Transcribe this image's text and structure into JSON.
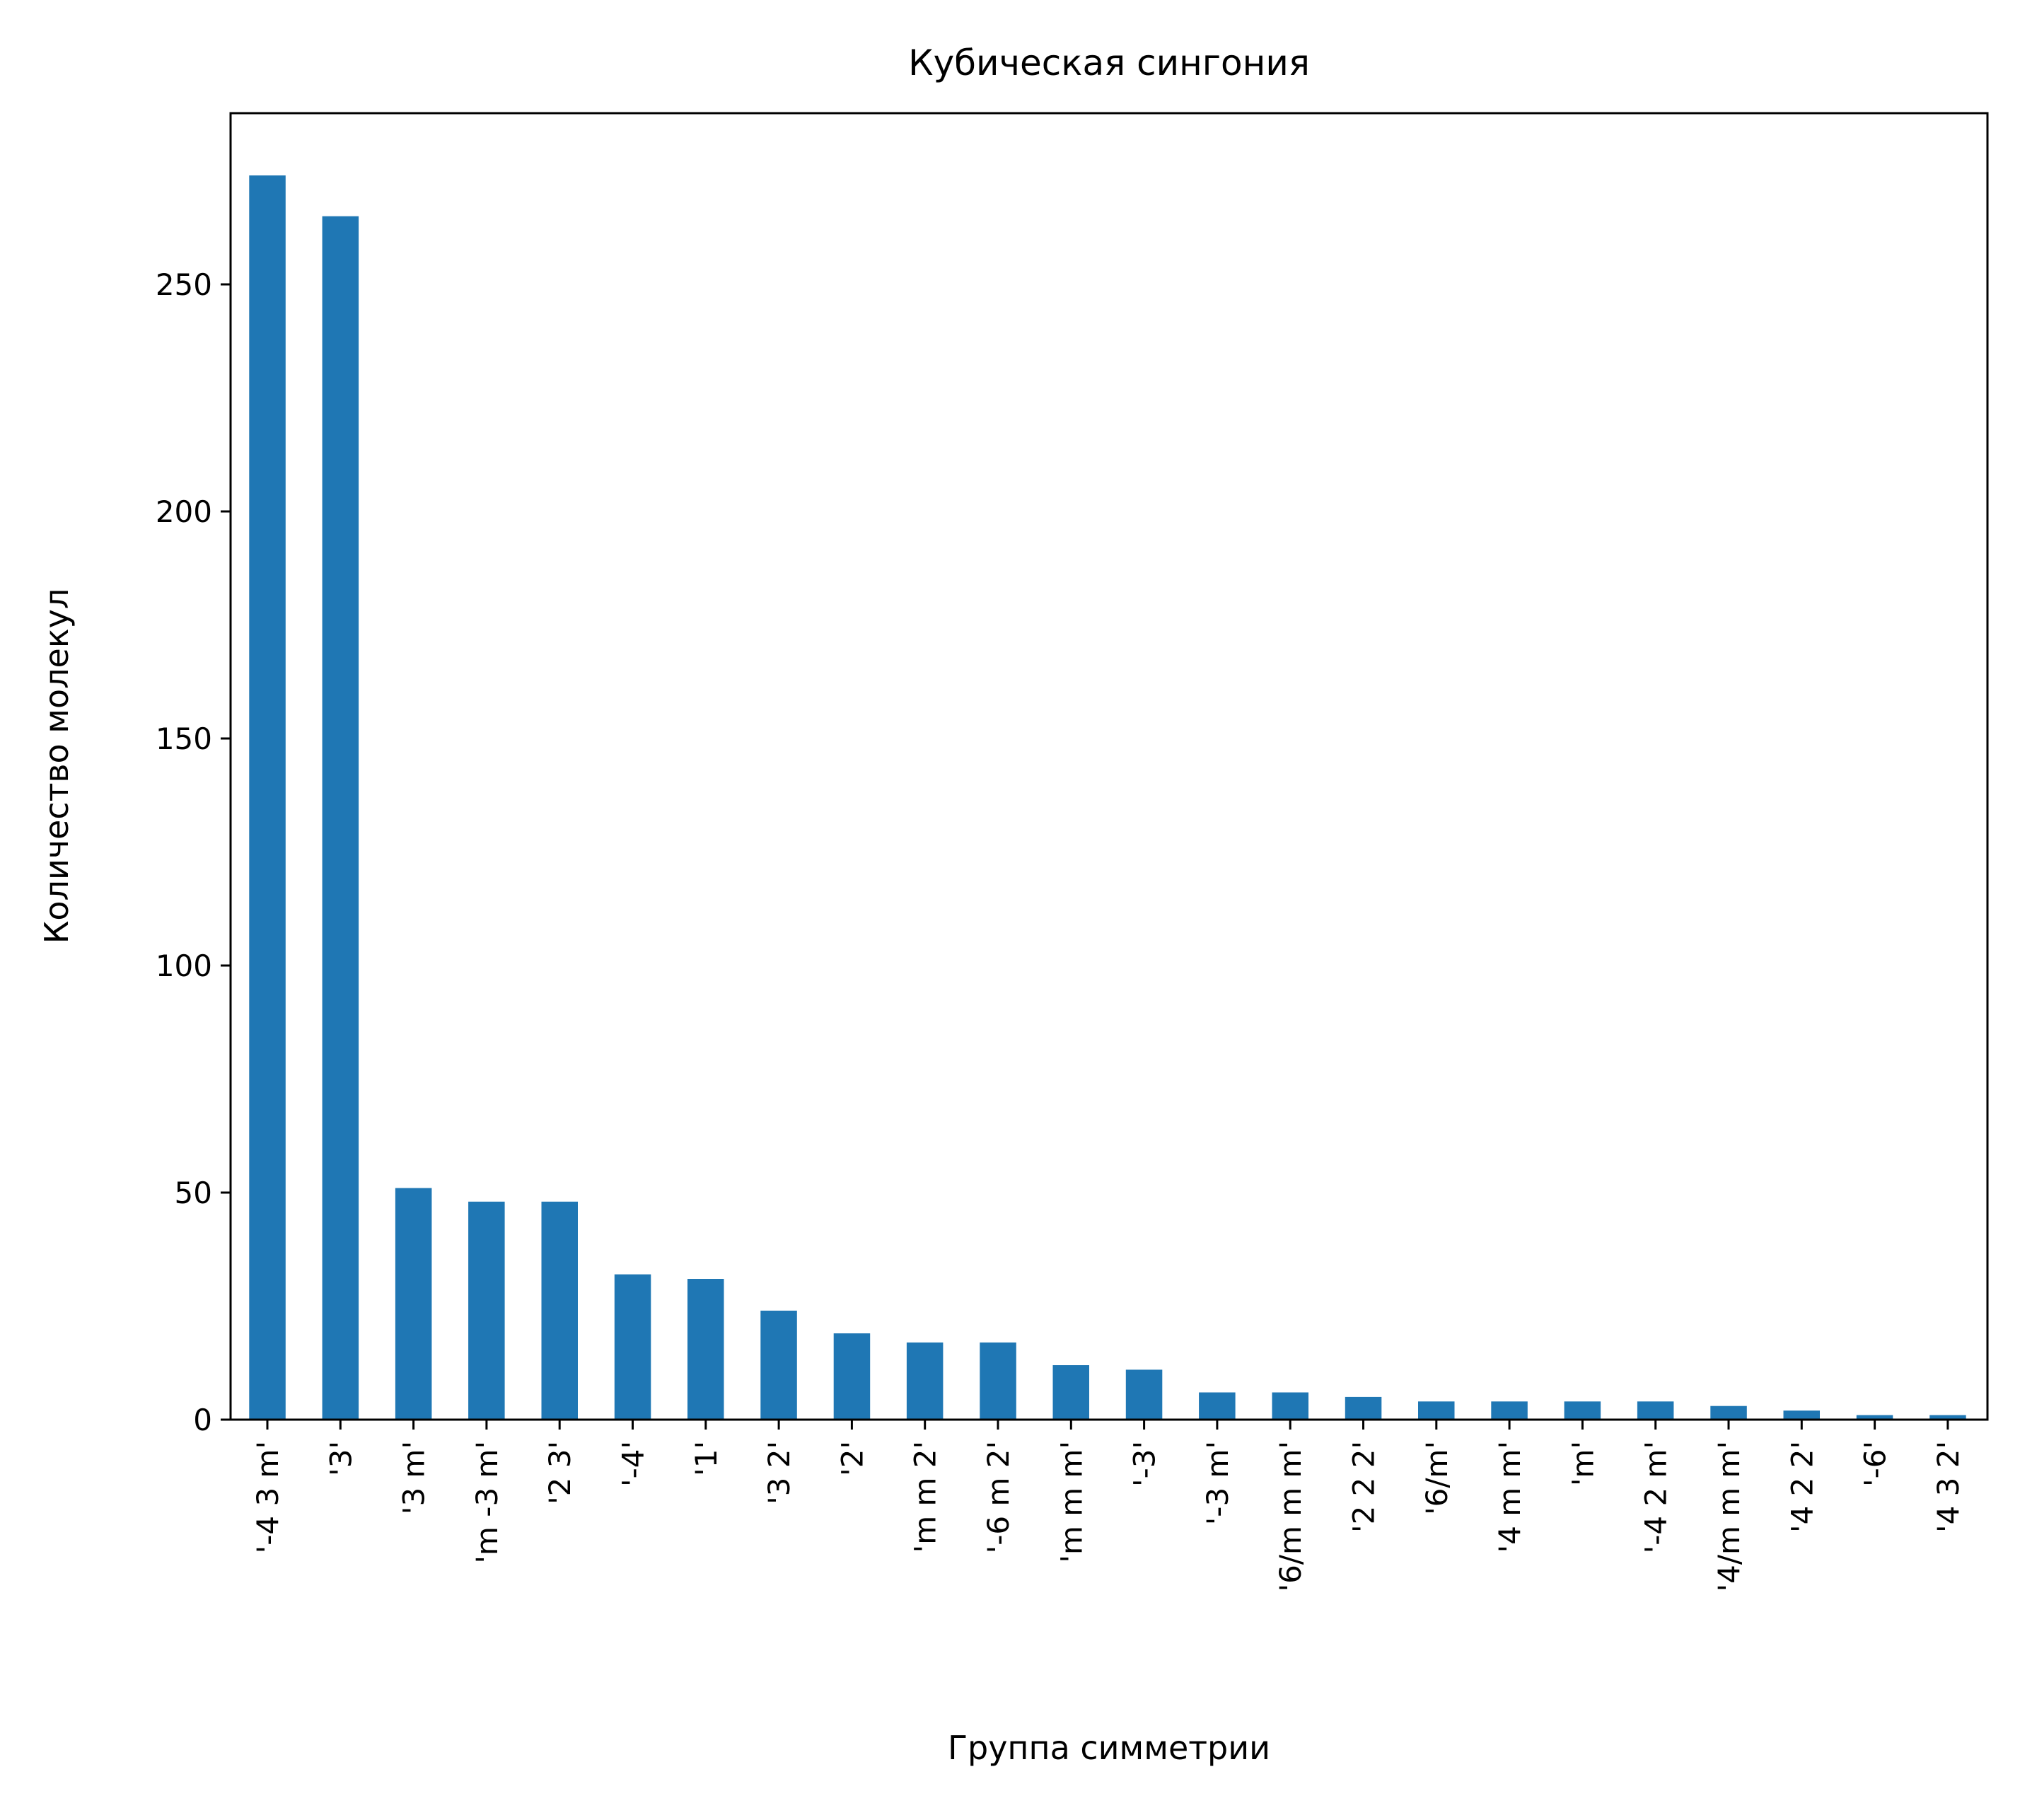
{
  "chart_data": {
    "type": "bar",
    "title": "Кубическая сингония",
    "xlabel": "Группа симметрии",
    "ylabel": "Количество молекул",
    "categories": [
      "'-4 3 m'",
      "'3'",
      "'3 m'",
      "'m -3 m'",
      "'2 3'",
      "'-4'",
      "'1'",
      "'3 2'",
      "'2'",
      "'m m 2'",
      "'-6 m 2'",
      "'m m m'",
      "'-3'",
      "'-3 m'",
      "'6/m m m'",
      "'2 2 2'",
      "'6/m'",
      "'4 m m'",
      "'m'",
      "'-4 2 m'",
      "'4/m m m'",
      "'4 2 2'",
      "'-6'",
      "'4 3 2'"
    ],
    "values": [
      274,
      265,
      51,
      48,
      48,
      32,
      31,
      24,
      19,
      17,
      17,
      12,
      11,
      6,
      6,
      5,
      4,
      4,
      4,
      4,
      3,
      2,
      1,
      1
    ],
    "ylim": [
      0,
      287.7
    ],
    "yticks": [
      0,
      50,
      100,
      150,
      200,
      250
    ],
    "bar_color": "#1f77b4",
    "grid": false,
    "legend": "none"
  }
}
